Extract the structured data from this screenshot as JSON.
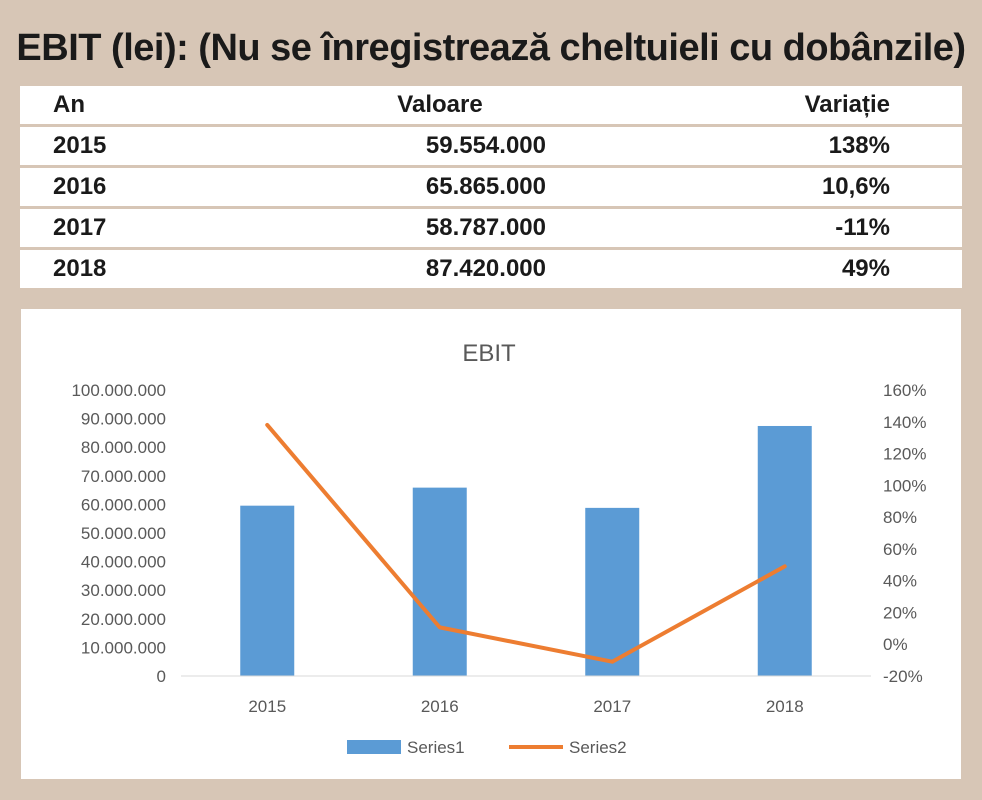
{
  "headline": "EBIT  (lei): (Nu se înregistrează cheltuieli cu dobânzile)",
  "table": {
    "headers": [
      "An",
      "Valoare",
      "Variație"
    ],
    "rows": [
      {
        "year": "2015",
        "value": "59.554.000",
        "change": "138%"
      },
      {
        "year": "2016",
        "value": "65.865.000",
        "change": "10,6%"
      },
      {
        "year": "2017",
        "value": "58.787.000",
        "change": "-11%"
      },
      {
        "year": "2018",
        "value": "87.420.000",
        "change": "49%"
      }
    ]
  },
  "chart_data": {
    "type": "bar",
    "title": "EBIT",
    "categories": [
      "2015",
      "2016",
      "2017",
      "2018"
    ],
    "series": [
      {
        "name": "Series1",
        "type": "bar",
        "axis": "left",
        "values": [
          59554000,
          65865000,
          58787000,
          87420000
        ],
        "color": "#5b9bd5"
      },
      {
        "name": "Series2",
        "type": "line",
        "axis": "right",
        "values": [
          138,
          10.6,
          -11,
          49
        ],
        "color": "#ed7d31"
      }
    ],
    "y_left": {
      "min": 0,
      "max": 100000000,
      "ticks": [
        "0",
        "10.000.000",
        "20.000.000",
        "30.000.000",
        "40.000.000",
        "50.000.000",
        "60.000.000",
        "70.000.000",
        "80.000.000",
        "90.000.000",
        "100.000.000"
      ]
    },
    "y_right": {
      "min": -20,
      "max": 160,
      "ticks": [
        "-20%",
        "0%",
        "20%",
        "40%",
        "60%",
        "80%",
        "100%",
        "120%",
        "140%",
        "160%"
      ]
    },
    "grid": false,
    "legend_position": "bottom"
  }
}
